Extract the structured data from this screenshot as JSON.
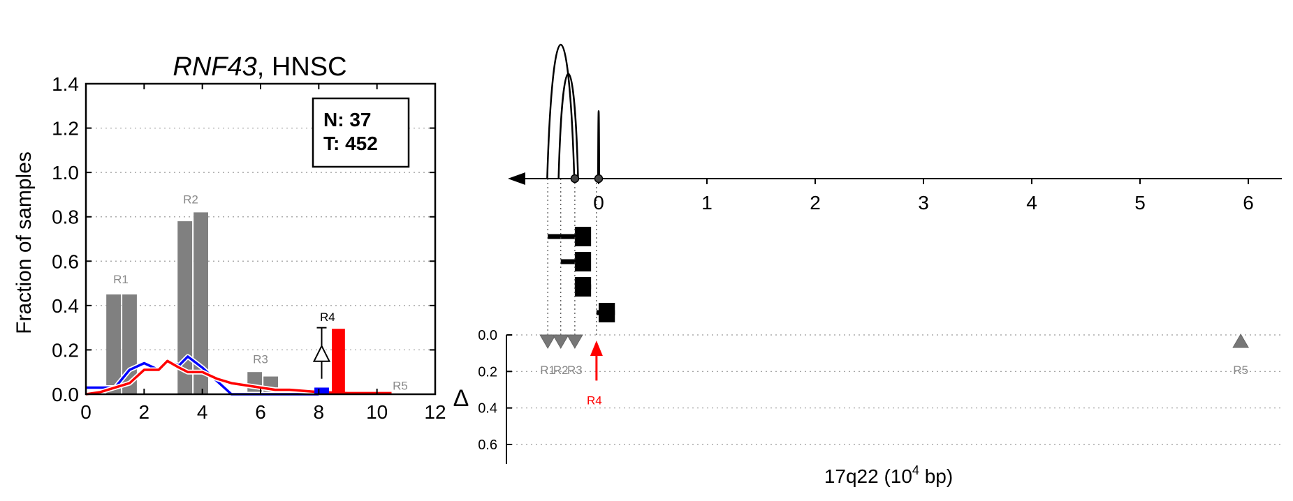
{
  "left_panel": {
    "title_gene": "RNF43",
    "title_rest": ", HNSC",
    "ylabel": "Fraction of samples",
    "legend": {
      "n_label": "N: 37",
      "t_label": "T: 452"
    }
  },
  "right_panel": {
    "xlabel_main": "17q22 (10",
    "xlabel_sup": "4",
    "xlabel_end": " bp)",
    "delta_label": "Δ"
  },
  "colors": {
    "normal": "#0000ff",
    "tumor": "#ff0000",
    "region": "#808080",
    "text_gray": "#8a8a8a"
  },
  "chart_data": [
    {
      "type": "bar",
      "panel": "left",
      "title": "RNF43, HNSC",
      "xlabel": "",
      "ylabel": "Fraction of samples",
      "xlim": [
        0,
        12
      ],
      "ylim": [
        0,
        1.4
      ],
      "xticks": [
        0,
        2,
        4,
        6,
        8,
        10,
        12
      ],
      "yticks": [
        0.0,
        0.2,
        0.4,
        0.6,
        0.8,
        1.0,
        1.2,
        1.4
      ],
      "grid": "horizontal dotted",
      "legend": [
        "N: 37",
        "T: 452"
      ],
      "legend_position": "top-right",
      "region_bars": [
        {
          "x0": 0.7,
          "x1": 1.2,
          "value": 0.45
        },
        {
          "x0": 1.25,
          "x1": 1.75,
          "value": 0.45
        },
        {
          "x0": 3.15,
          "x1": 3.65,
          "value": 0.78
        },
        {
          "x0": 3.7,
          "x1": 4.2,
          "value": 0.82
        },
        {
          "x0": 5.55,
          "x1": 6.05,
          "value": 0.1
        },
        {
          "x0": 6.1,
          "x1": 6.6,
          "value": 0.08
        }
      ],
      "region_labels": [
        {
          "label": "R1",
          "x": 1.2,
          "y": 0.5
        },
        {
          "label": "R2",
          "x": 3.6,
          "y": 0.86
        },
        {
          "label": "R3",
          "x": 6.0,
          "y": 0.14
        },
        {
          "label": "R4",
          "x": 8.3,
          "y": 0.33
        },
        {
          "label": "R5",
          "x": 10.8,
          "y": 0.02
        }
      ],
      "series": [
        {
          "name": "N: 37",
          "color": "#0000ff",
          "x": [
            0.0,
            0.5,
            1.0,
            1.5,
            2.0,
            2.5,
            2.8,
            3.2,
            3.5,
            4.0,
            4.5,
            5.0,
            6.0,
            7.0,
            8.0
          ],
          "values": [
            0.03,
            0.03,
            0.03,
            0.11,
            0.14,
            0.11,
            0.15,
            0.13,
            0.17,
            0.12,
            0.06,
            0.0,
            0.0,
            0.0,
            0.0
          ]
        },
        {
          "name": "T: 452",
          "color": "#ff0000",
          "x": [
            0.0,
            0.5,
            1.0,
            1.5,
            2.0,
            2.5,
            2.8,
            3.2,
            3.5,
            4.0,
            4.5,
            5.0,
            5.5,
            6.0,
            6.5,
            7.0,
            8.0,
            9.0,
            10.0,
            10.5
          ],
          "values": [
            0.0,
            0.01,
            0.03,
            0.05,
            0.11,
            0.11,
            0.15,
            0.12,
            0.1,
            0.1,
            0.07,
            0.05,
            0.04,
            0.03,
            0.02,
            0.02,
            0.01,
            0.005,
            0.005,
            0.005
          ]
        }
      ],
      "r4": {
        "normal": 0.03,
        "tumor": 0.295,
        "delta": 0.18,
        "delta_err": [
          0.07,
          0.3
        ]
      }
    },
    {
      "type": "scatter",
      "panel": "right",
      "xlabel": "17q22 (10^4 bp)",
      "ylabel": "Δ",
      "xlim": [
        -0.75,
        6.3
      ],
      "xticks": [
        0,
        1,
        2,
        3,
        4,
        5,
        6
      ],
      "delta_ylim": [
        0.0,
        0.7
      ],
      "delta_yticks": [
        0.0,
        0.2,
        0.4,
        0.6
      ],
      "grid": "horizontal dotted",
      "peaks": [
        {
          "x": -0.35,
          "width": 0.25,
          "height": 1.0
        },
        {
          "x": -0.28,
          "width": 0.18,
          "height": 0.76
        },
        {
          "x": 0.0,
          "width": 0.01,
          "height": 0.45
        }
      ],
      "peak_markers": [
        -0.22,
        0.0
      ],
      "gene_tracks": [
        {
          "x_start": -0.47,
          "x_end": -0.16,
          "box_start": -0.22,
          "box_end": -0.07
        },
        {
          "x_start": -0.35,
          "x_end": -0.16,
          "box_start": -0.22,
          "box_end": -0.07
        },
        {
          "x_start": -0.22,
          "x_end": -0.07,
          "box_start": -0.22,
          "box_end": -0.07
        },
        {
          "x_start": -0.02,
          "x_end": 0.15,
          "box_start": 0.0,
          "box_end": 0.15
        }
      ],
      "regions": [
        {
          "label": "R1",
          "x": -0.47,
          "delta": -0.03,
          "direction": "down",
          "color": "#808080"
        },
        {
          "label": "R2",
          "x": -0.35,
          "delta": -0.03,
          "direction": "down",
          "color": "#808080"
        },
        {
          "label": "R3",
          "x": -0.22,
          "delta": -0.03,
          "direction": "down",
          "color": "#808080"
        },
        {
          "label": "R4",
          "x": -0.02,
          "delta": 0.25,
          "direction": "up",
          "color": "#ff0000"
        },
        {
          "label": "R5",
          "x": 5.93,
          "delta": 0.03,
          "direction": "up",
          "color": "#808080"
        }
      ]
    }
  ]
}
